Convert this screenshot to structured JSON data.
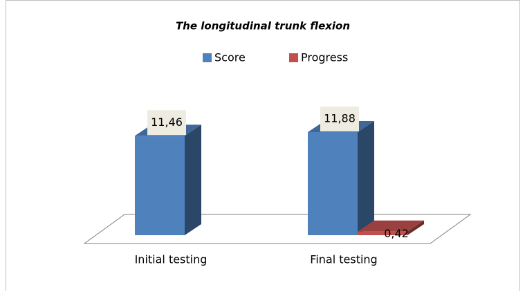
{
  "chart_data": {
    "type": "bar3d",
    "title": "The longitudinal trunk flexion",
    "categories": [
      "Initial testing",
      "Final testing"
    ],
    "series": [
      {
        "name": "Score",
        "color": "#4f81bd",
        "values": [
          11.46,
          11.88
        ],
        "value_labels": [
          "11,46",
          "11,88"
        ]
      },
      {
        "name": "Progress",
        "color": "#c0504d",
        "values": [
          null,
          0.42
        ],
        "value_labels": [
          null,
          "0,42"
        ]
      }
    ]
  }
}
